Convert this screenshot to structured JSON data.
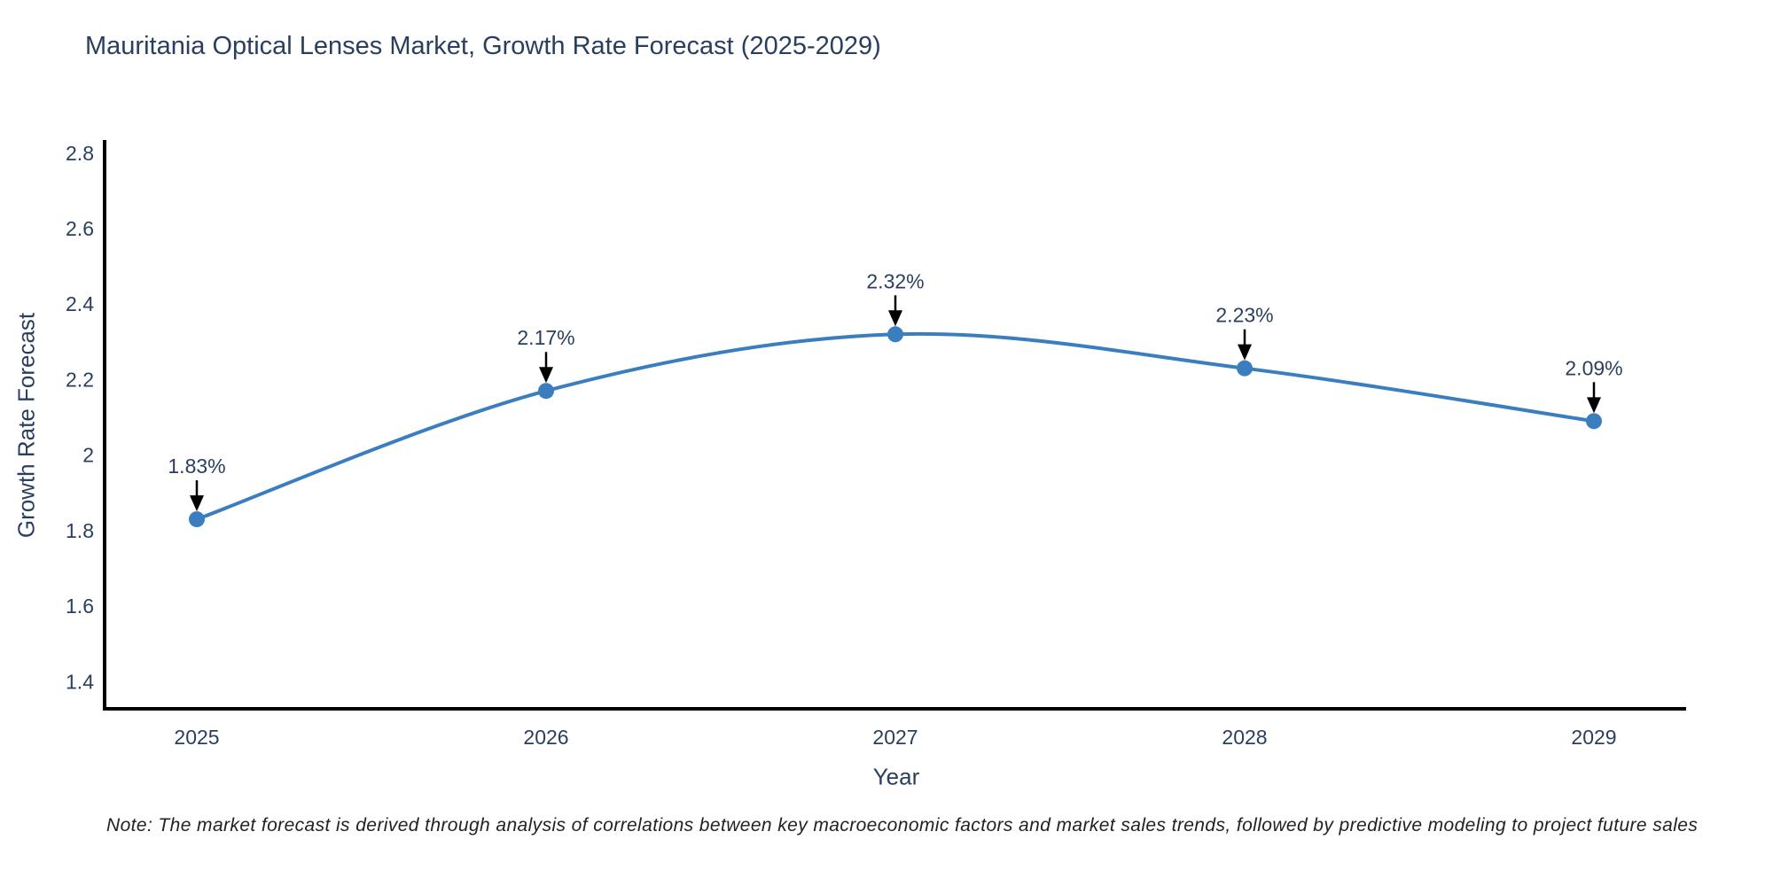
{
  "title": "Mauritania Optical Lenses Market, Growth Rate Forecast (2025-2029)",
  "note": "Note: The market forecast is derived through analysis of correlations between key macroeconomic factors and market sales trends, followed by predictive modeling to project future sales",
  "chart_data": {
    "type": "line",
    "title": "Mauritania Optical Lenses Market, Growth Rate Forecast (2025-2029)",
    "xlabel": "Year",
    "ylabel": "Growth Rate Forecast",
    "x": [
      "2025",
      "2026",
      "2027",
      "2028",
      "2029"
    ],
    "series": [
      {
        "name": "Growth Rate Forecast",
        "values": [
          1.83,
          2.17,
          2.32,
          2.23,
          2.09
        ]
      }
    ],
    "point_labels": [
      "1.83%",
      "2.17%",
      "2.32%",
      "2.23%",
      "2.09%"
    ],
    "ylim": [
      1.328,
      2.83
    ],
    "yticks": [
      1.4,
      1.6,
      1.8,
      2,
      2.2,
      2.4,
      2.6,
      2.8
    ],
    "ytick_labels": [
      "1.4",
      "1.6",
      "1.8",
      "2",
      "2.2",
      "2.4",
      "2.6",
      "2.8"
    ],
    "grid": false,
    "legend_position": "none",
    "line_shape": "spline",
    "colors": {
      "line": "#3a7ebf",
      "marker": "#3a7ebf",
      "axis_line": "#000000",
      "tick_text": "#2a3f5f",
      "annotation_text": "#2a3f5f",
      "annotation_arrow": "#000000",
      "title_text": "#2a3f5f",
      "background": "#ffffff"
    }
  }
}
